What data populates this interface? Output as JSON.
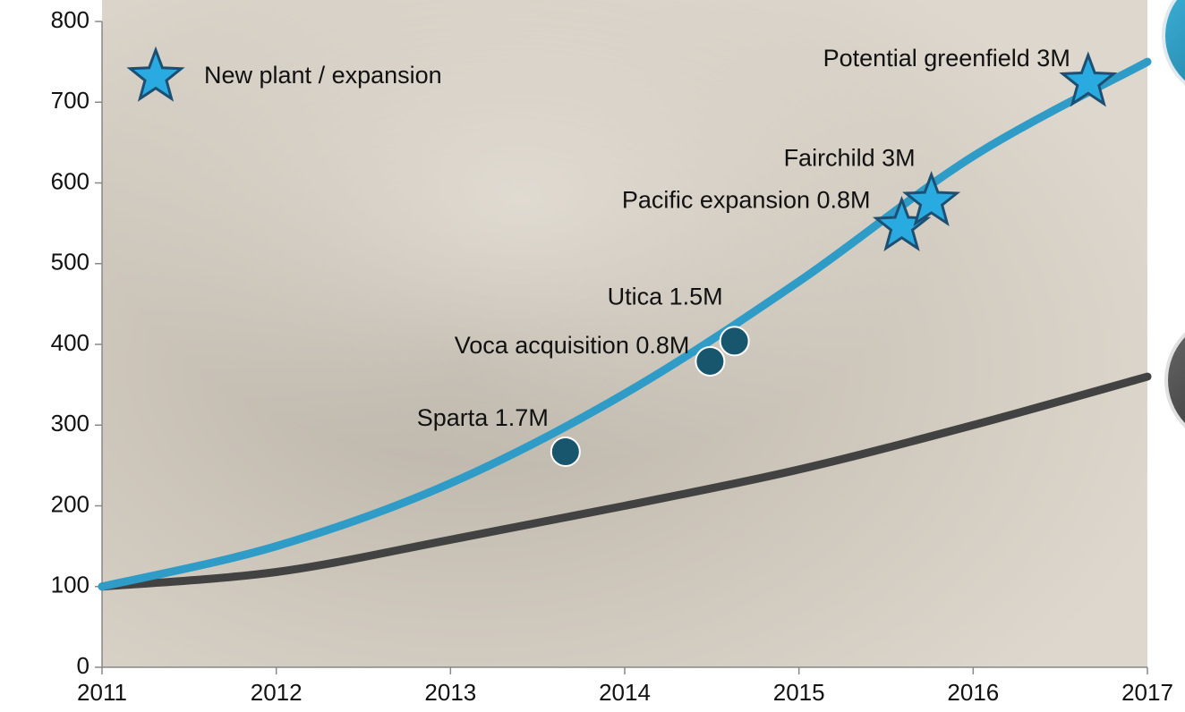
{
  "chart_data": {
    "type": "line",
    "x": [
      2011,
      2012,
      2013,
      2014,
      2015,
      2016,
      2017
    ],
    "series": [
      {
        "color": "#2f9cc7",
        "values": [
          100,
          150,
          228,
          339,
          478,
          633,
          750
        ]
      },
      {
        "color": "#424242",
        "values": [
          100,
          118,
          158,
          200,
          245,
          300,
          360
        ]
      }
    ],
    "markers": [
      {
        "label": "Sparta 1.7M",
        "x": 2013.66,
        "y": 267,
        "shape": "circle",
        "color": "#17566d"
      },
      {
        "label": "Voca acquisition 0.8M",
        "x": 2014.49,
        "y": 379,
        "shape": "circle",
        "color": "#17566d"
      },
      {
        "label": "Utica 1.5M",
        "x": 2014.63,
        "y": 404,
        "shape": "circle",
        "color": "#17566d"
      },
      {
        "label": "Pacific expansion 0.8M",
        "x": 2015.59,
        "y": 546,
        "shape": "star",
        "color": "#29abe2"
      },
      {
        "label": "Fairchild 3M",
        "x": 2015.76,
        "y": 577,
        "shape": "star",
        "color": "#29abe2"
      },
      {
        "label": "Potential greenfield 3M",
        "x": 2016.66,
        "y": 725,
        "shape": "star",
        "color": "#29abe2"
      }
    ],
    "legend": {
      "label": "New plant / expansion",
      "shape": "star",
      "color": "#29abe2",
      "position": "upper left"
    },
    "xlim": [
      2011,
      2017
    ],
    "xticks": [
      2011,
      2012,
      2013,
      2014,
      2015,
      2016,
      2017
    ],
    "ylim": [
      0,
      800
    ],
    "yticks": [
      0,
      100,
      200,
      300,
      400,
      500,
      600,
      700,
      800
    ]
  }
}
